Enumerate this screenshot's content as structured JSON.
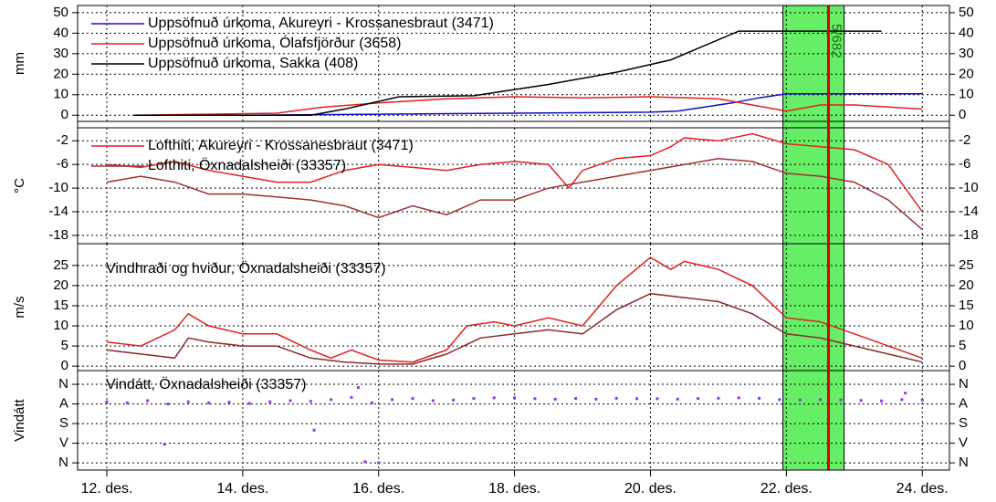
{
  "chart_data": [
    {
      "type": "line",
      "ylabel": "mm",
      "legend": true,
      "ylim": [
        -3,
        53.5
      ],
      "yticks": [
        0,
        10,
        20,
        30,
        40,
        50
      ],
      "series": [
        {
          "name": "Uppsöfnuð úrkoma, Akureyri - Krossanesbraut (3471)",
          "color": "#1010c0",
          "x": [
            12.4,
            14,
            16,
            18,
            20,
            20.4,
            20.8,
            21.2,
            21.6,
            22,
            23,
            24
          ],
          "values": [
            0,
            0,
            0.5,
            1,
            1.5,
            2,
            4,
            6,
            8.5,
            10.5,
            10.5,
            10.5
          ]
        },
        {
          "name": "Uppsöfnuð úrkoma, Ólafsfjörður (3658)",
          "color": "#e02020",
          "x": [
            12.4,
            14.5,
            15.2,
            16,
            17,
            18,
            19,
            20,
            21,
            21.5,
            22,
            22.5,
            23,
            24
          ],
          "values": [
            0,
            1,
            4,
            6,
            8,
            9,
            8.5,
            9,
            8,
            5,
            2,
            5,
            5,
            3
          ]
        },
        {
          "name": "Uppsöfnuð úrkoma, Sakka (408)",
          "color": "#000000",
          "x": [
            12.4,
            15,
            15.5,
            16.3,
            17.4,
            18.5,
            19.5,
            20.3,
            21.3,
            22,
            23.4
          ],
          "values": [
            0,
            0,
            3,
            9,
            9.5,
            15,
            21,
            27,
            41,
            41,
            41
          ]
        }
      ]
    },
    {
      "type": "line",
      "ylabel": "°C",
      "legend": true,
      "ylim": [
        -19.4,
        0.2
      ],
      "yticks": [
        -2,
        -6,
        -10,
        -14,
        -18
      ],
      "series": [
        {
          "name": "Lofthiti, Akureyri - Krossanesbraut (3471)",
          "color": "#e02020",
          "x": [
            12,
            12.5,
            13,
            13.5,
            14,
            14.5,
            15,
            15.5,
            16,
            16.5,
            17,
            17.5,
            18,
            18.5,
            18.8,
            19,
            19.5,
            20,
            20.3,
            20.5,
            21,
            21.5,
            22,
            22.5,
            23,
            23.5,
            24
          ],
          "values": [
            -6,
            -6.5,
            -5.5,
            -7,
            -8,
            -9,
            -9,
            -7,
            -6,
            -6.5,
            -7,
            -6,
            -5.5,
            -6,
            -10,
            -7,
            -5,
            -4.5,
            -3,
            -1.5,
            -2,
            -0.8,
            -2.5,
            -3,
            -3.5,
            -6,
            -14
          ]
        },
        {
          "name": "Lofthiti, Öxnadalsheiði (33357)",
          "color": "#a03030",
          "x": [
            12,
            12.5,
            13,
            13.5,
            14,
            14.5,
            15,
            15.5,
            16,
            16.5,
            17,
            17.5,
            18,
            18.5,
            19,
            19.5,
            20,
            20.5,
            21,
            21.5,
            22,
            22.5,
            23,
            23.5,
            24
          ],
          "values": [
            -9,
            -8,
            -9,
            -11,
            -11,
            -11.5,
            -12,
            -13,
            -15,
            -13,
            -14.5,
            -12,
            -12,
            -10,
            -9,
            -8,
            -7,
            -6,
            -5,
            -5.5,
            -7.5,
            -8,
            -9,
            -12,
            -17
          ]
        }
      ]
    },
    {
      "type": "line",
      "ylabel": "m/s",
      "title": "Vindhraði og hviður, Öxnadalsheiði (33357)",
      "ylim": [
        -1.1,
        30.4
      ],
      "yticks": [
        0,
        5,
        10,
        15,
        20,
        25
      ],
      "series": [
        {
          "color": "#e02020",
          "x": [
            12,
            12.5,
            13,
            13.2,
            13.5,
            14,
            14.5,
            15,
            15.3,
            15.6,
            16,
            16.5,
            17,
            17.3,
            17.7,
            18,
            18.5,
            19,
            19.5,
            20,
            20.3,
            20.5,
            21,
            21.5,
            22,
            22.5,
            23,
            23.5,
            24
          ],
          "values": [
            6,
            5,
            9,
            13,
            10,
            8,
            8,
            4,
            2,
            4,
            1.5,
            1,
            4,
            10,
            11,
            10,
            12,
            10,
            20,
            27,
            24,
            26,
            24,
            20,
            12,
            11,
            8,
            5,
            2
          ]
        },
        {
          "color": "#8b2a2a",
          "x": [
            12,
            12.5,
            13,
            13.2,
            13.5,
            14,
            14.5,
            15,
            15.5,
            16,
            16.5,
            17,
            17.5,
            18,
            18.5,
            19,
            19.5,
            20,
            20.5,
            21,
            21.5,
            22,
            22.5,
            23,
            23.5,
            24
          ],
          "values": [
            4,
            3,
            2,
            7,
            6,
            5,
            5,
            2,
            1,
            0.5,
            0.5,
            3,
            7,
            8,
            9,
            8,
            14,
            18,
            17,
            16,
            13,
            8,
            7,
            5,
            3,
            1
          ]
        }
      ]
    },
    {
      "type": "scatter",
      "ylabel": "Vindátt",
      "title": "Vindátt, Öxnadalsheiði (33357)",
      "ylim": [
        393,
        -63
      ],
      "yticks": [
        {
          "value": 0,
          "label": "N"
        },
        {
          "value": 90,
          "label": "A"
        },
        {
          "value": 180,
          "label": "S"
        },
        {
          "value": 270,
          "label": "V"
        },
        {
          "value": 360,
          "label": "N"
        }
      ],
      "xlim": [
        11.57,
        24.4
      ],
      "xticks": [
        {
          "value": 12,
          "label": "12. des."
        },
        {
          "value": 14,
          "label": "14. des."
        },
        {
          "value": 16,
          "label": "16. des."
        },
        {
          "value": 18,
          "label": "18. des."
        },
        {
          "value": 20,
          "label": "20. des."
        },
        {
          "value": 22,
          "label": "22. des."
        },
        {
          "value": 24,
          "label": "24. des."
        }
      ],
      "band": [
        21.95,
        22.85
      ],
      "band_color": "#66ee66",
      "vline": 22.62,
      "vline_color": "#dd0000",
      "vline_label": "5/682",
      "series": [
        {
          "color": "#9933ee",
          "x": [
            12.0,
            12.3,
            12.6,
            12.9,
            13.2,
            13.5,
            13.8,
            14.1,
            14.4,
            14.7,
            15.0,
            15.3,
            15.6,
            15.9,
            16.2,
            16.5,
            16.8,
            17.1,
            17.4,
            17.7,
            18.0,
            18.3,
            18.6,
            18.9,
            19.2,
            19.5,
            19.8,
            20.1,
            20.4,
            20.7,
            21.0,
            21.3,
            21.6,
            21.9,
            22.2,
            22.5,
            22.8,
            23.1,
            23.4,
            23.7,
            24.0,
            12.85,
            15.05,
            15.8,
            16.0,
            15.7,
            23.75
          ],
          "values": [
            80,
            85,
            75,
            90,
            80,
            85,
            82,
            88,
            80,
            75,
            78,
            70,
            60,
            85,
            70,
            65,
            75,
            72,
            65,
            62,
            62,
            66,
            68,
            65,
            68,
            64,
            66,
            66,
            68,
            65,
            64,
            62,
            64,
            70,
            72,
            70,
            72,
            74,
            76,
            70,
            72,
            275,
            210,
            355,
            360,
            15,
            40
          ]
        }
      ]
    }
  ]
}
